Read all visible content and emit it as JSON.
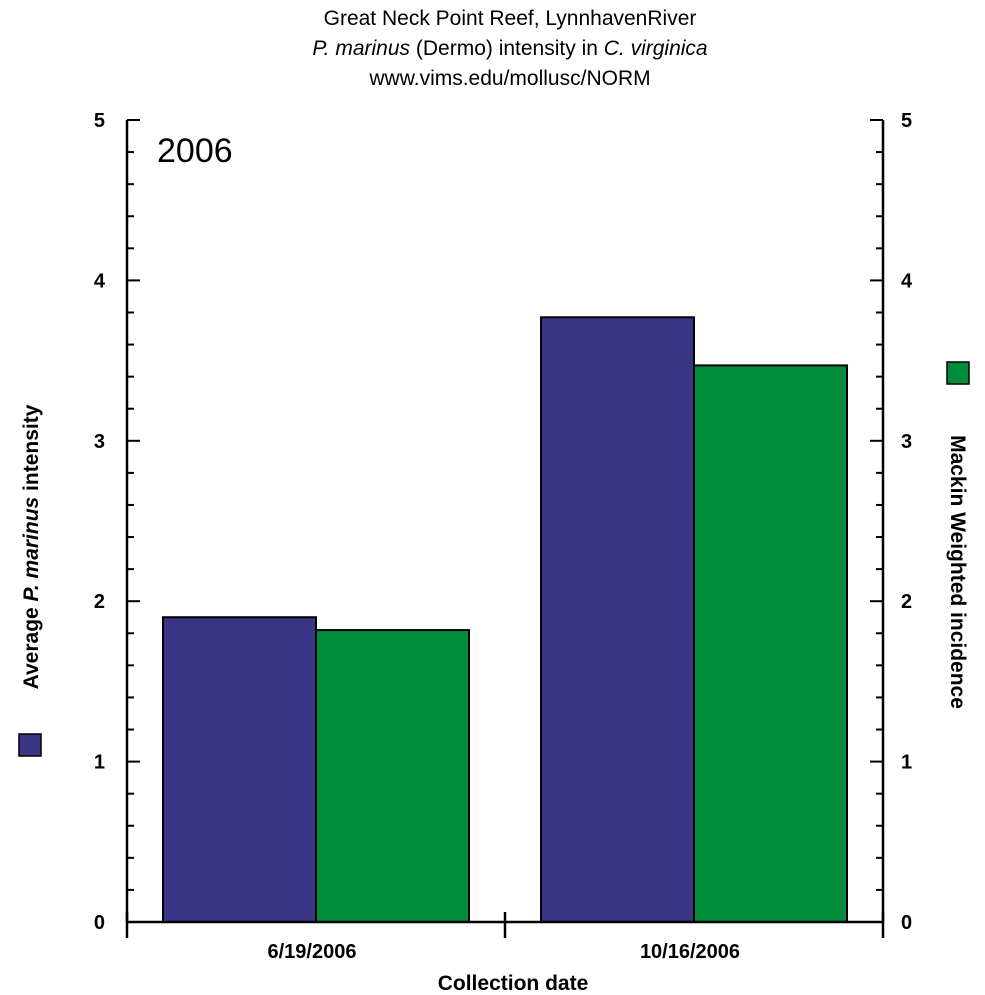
{
  "title": {
    "line1": "Great Neck Point Reef, LynnhavenRiver",
    "line2_italic_a": "P. marinus",
    "line2_plain": " (Dermo) intensity in ",
    "line2_italic_b": "C. virginica",
    "line3": "www.vims.edu/mollusc/NORM"
  },
  "colors": {
    "series_intensity": "#3a3585",
    "series_incidence": "#008c3a",
    "axis": "#000000"
  },
  "chart_data": {
    "type": "bar",
    "year_label": "2006",
    "categories": [
      "6/19/2006",
      "10/16/2006"
    ],
    "series": [
      {
        "values": [
          1.9,
          3.77
        ]
      },
      {
        "values": [
          1.82,
          3.47
        ]
      }
    ],
    "xlabel": "Collection date",
    "ylabel_left_prefix": "Average ",
    "ylabel_left_italic": "P. marinus",
    "ylabel_left_suffix": " intensity",
    "ylabel_right": "Mackin Weighted incidence",
    "ylim": [
      0,
      5
    ],
    "yticks": [
      "0",
      "1",
      "2",
      "3",
      "4",
      "5"
    ],
    "grid": false,
    "legend": "axis-title-swatches"
  }
}
